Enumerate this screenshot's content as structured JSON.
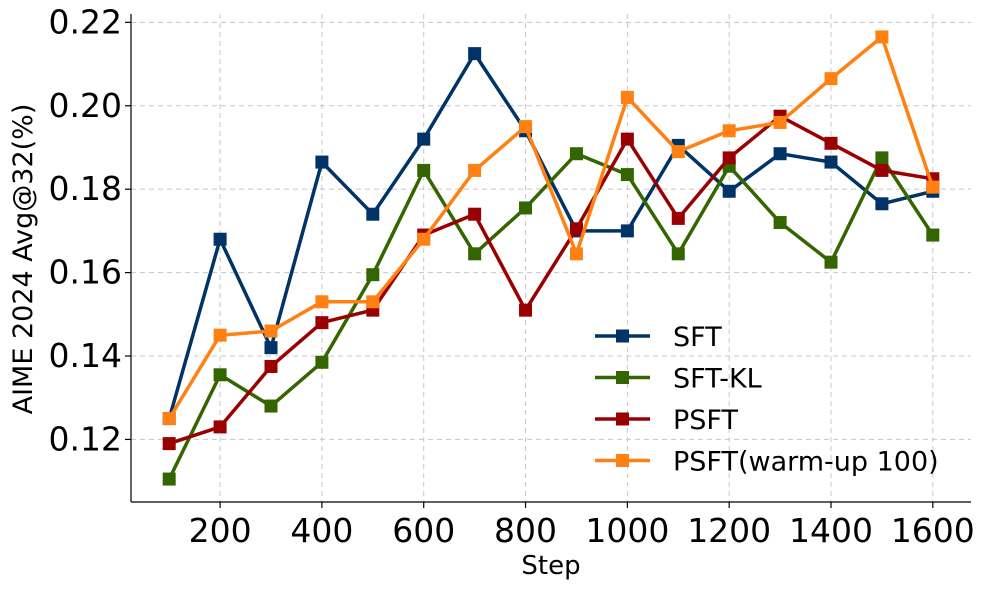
{
  "chart_data": {
    "type": "line",
    "title": "",
    "xlabel": "Step",
    "ylabel": "AIME 2024 Avg@32(%)",
    "x": [
      100,
      200,
      300,
      400,
      500,
      600,
      700,
      800,
      900,
      1000,
      1100,
      1200,
      1300,
      1400,
      1500,
      1600
    ],
    "xlim": [
      25,
      1675
    ],
    "ylim": [
      0.105,
      0.222
    ],
    "xticks": [
      200,
      400,
      600,
      800,
      1000,
      1200,
      1400,
      1600
    ],
    "xtick_labels": [
      "200",
      "400",
      "600",
      "800",
      "1000",
      "1200",
      "1400",
      "1600"
    ],
    "yticks": [
      0.12,
      0.14,
      0.16,
      0.18,
      0.2,
      0.22
    ],
    "ytick_labels": [
      "0.12",
      "0.14",
      "0.16",
      "0.18",
      "0.20",
      "0.22"
    ],
    "grid": true,
    "legend_position": "bottom-right",
    "series": [
      {
        "name": "SFT",
        "color": "#003366",
        "values": [
          0.125,
          0.168,
          0.142,
          0.1865,
          0.174,
          0.192,
          0.2125,
          0.194,
          0.17,
          0.17,
          0.1905,
          0.1795,
          0.1885,
          0.1865,
          0.1765,
          0.1795
        ]
      },
      {
        "name": "SFT-KL",
        "color": "#336600",
        "values": [
          0.1105,
          0.1355,
          0.128,
          0.1385,
          0.1595,
          0.1845,
          0.1645,
          0.1755,
          0.1885,
          0.1835,
          0.1645,
          0.1855,
          0.172,
          0.1625,
          0.1875,
          0.169
        ]
      },
      {
        "name": "PSFT",
        "color": "#990000",
        "values": [
          0.119,
          0.123,
          0.1375,
          0.148,
          0.151,
          0.169,
          0.174,
          0.151,
          0.1705,
          0.192,
          0.173,
          0.1875,
          0.1975,
          0.191,
          0.1845,
          0.1825
        ]
      },
      {
        "name": "PSFT(warm-up 100)",
        "color": "#FF8013",
        "values": [
          0.125,
          0.145,
          0.146,
          0.153,
          0.153,
          0.168,
          0.1845,
          0.195,
          0.1645,
          0.202,
          0.189,
          0.194,
          0.196,
          0.2065,
          0.2165,
          0.1805
        ]
      }
    ]
  }
}
